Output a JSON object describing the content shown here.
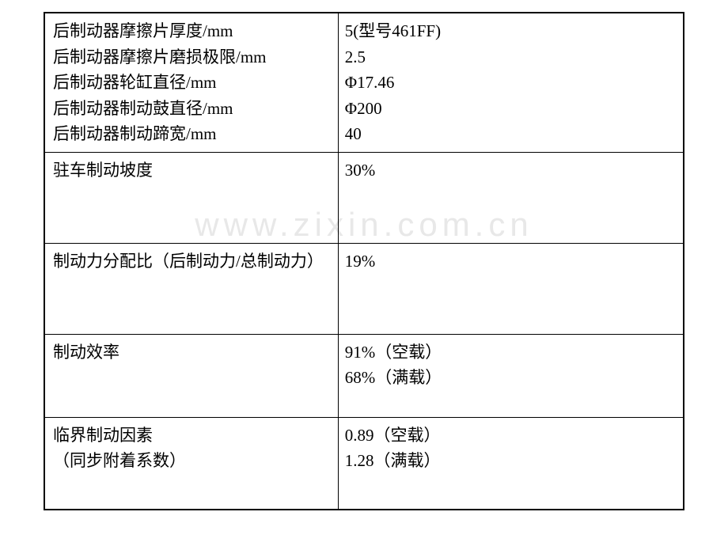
{
  "watermark": "www.zixin.com.cn",
  "table": {
    "border_color": "#000000",
    "background_color": "#ffffff",
    "text_color": "#000000",
    "font_size": 21,
    "rows": [
      {
        "left_lines": [
          "后制动器摩擦片厚度/mm",
          "后制动器摩擦片磨损极限/mm",
          "后制动器轮缸直径/mm",
          "后制动器制动鼓直径/mm",
          "后制动器制动蹄宽/mm"
        ],
        "right_lines": [
          "5(型号461FF)",
          "2.5",
          "Φ17.46",
          "Φ200",
          "40"
        ],
        "height_class": ""
      },
      {
        "left_lines": [
          "驻车制动坡度"
        ],
        "right_lines": [
          "30%"
        ],
        "height_class": "row-tall"
      },
      {
        "left_lines": [
          "制动力分配比（后制动力/总制动力）"
        ],
        "right_lines": [
          "19%"
        ],
        "height_class": "row-tall"
      },
      {
        "left_lines": [
          "制动效率"
        ],
        "right_lines": [
          "91%（空载）",
          "68%（满载）"
        ],
        "height_class": "row-medium"
      },
      {
        "left_lines": [
          "临界制动因素",
          "（同步附着系数）"
        ],
        "right_lines": [
          "0.89（空载）",
          "1.28（满载）"
        ],
        "height_class": "row-last"
      }
    ]
  }
}
